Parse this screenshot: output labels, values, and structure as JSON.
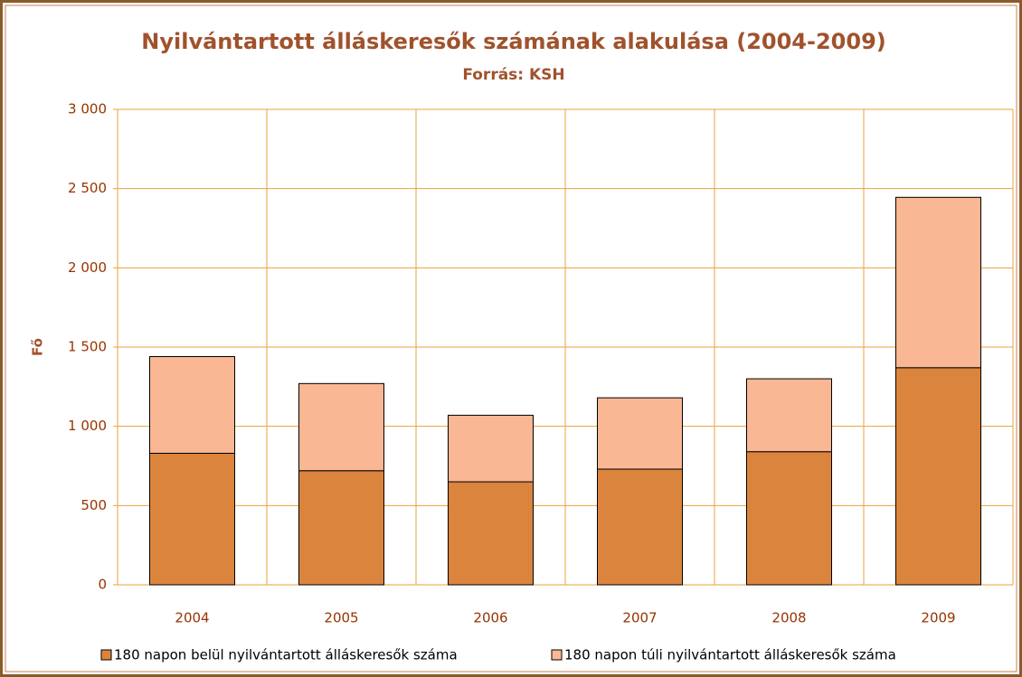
{
  "chart_data": {
    "type": "stacked_bar",
    "title": "Nyilvántartott álláskeresők számának alakulása (2004-2009)",
    "subtitle": "Forrás: KSH",
    "y_label": "Fő",
    "categories": [
      "2004",
      "2005",
      "2006",
      "2007",
      "2008",
      "2009"
    ],
    "series": [
      {
        "name": "180 napon belül nyilvántartott álláskeresők száma",
        "color": "#db843d",
        "values": [
          830,
          720,
          650,
          730,
          840,
          1370
        ]
      },
      {
        "name": "180 napon túli nyilvántartott álláskeresők száma",
        "color": "#f9b794",
        "values": [
          610,
          550,
          420,
          450,
          460,
          1075
        ]
      }
    ],
    "ylim": [
      0,
      3000
    ],
    "yticks": [
      0,
      500,
      {
        "value": 1000,
        "label": "1 000"
      },
      {
        "value": 1500,
        "label": "1 500"
      },
      {
        "value": 2000,
        "label": "2 000"
      },
      {
        "value": 2500,
        "label": "2 500"
      },
      {
        "value": 3000,
        "label": "3 000"
      }
    ],
    "grid": true,
    "legend": "bottom"
  }
}
